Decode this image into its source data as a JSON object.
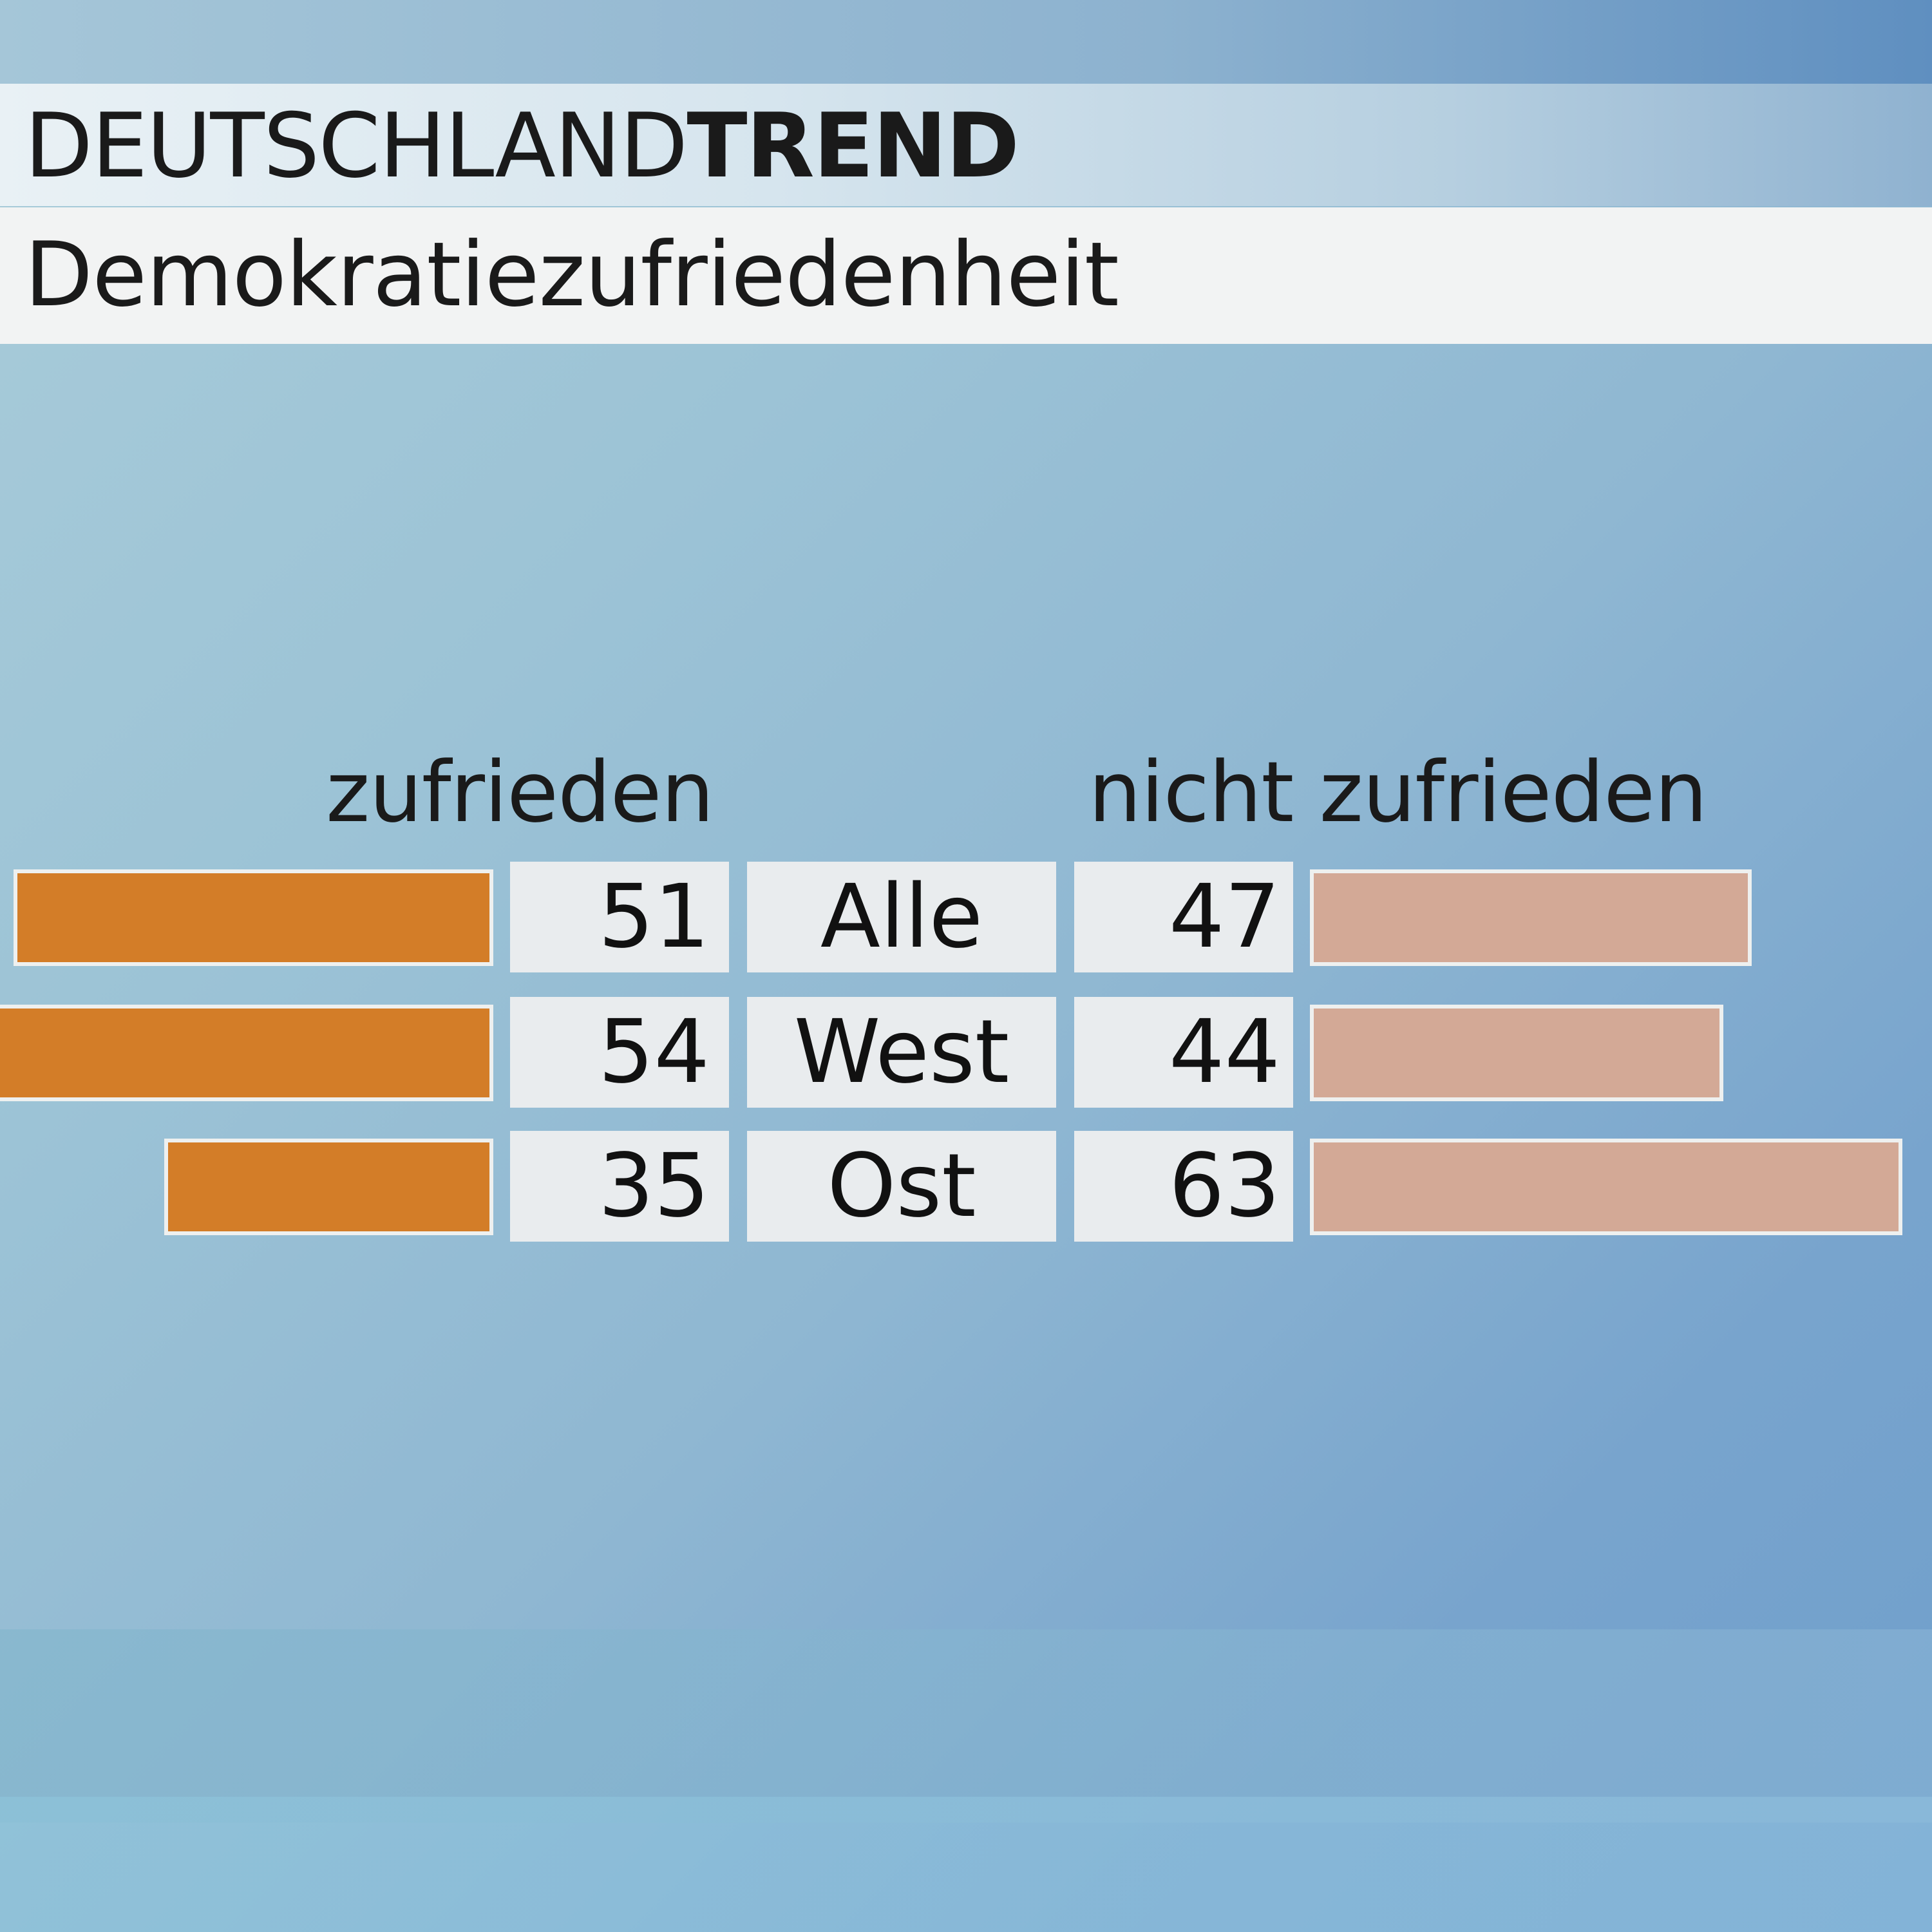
{
  "brand": {
    "light": "DEUTSCHLAND",
    "bold": "TREND"
  },
  "title": "Demokratiezufriedenheit",
  "colors": {
    "satisfied": "#d37d28",
    "unsatisfied": "#d3a996"
  },
  "chart_data": {
    "type": "bar",
    "title": "Demokratiezufriedenheit",
    "categories": [
      "Alle",
      "West",
      "Ost"
    ],
    "series": [
      {
        "name": "zufrieden",
        "values": [
          51,
          54,
          35
        ]
      },
      {
        "name": "nicht zufrieden",
        "values": [
          47,
          44,
          63
        ]
      }
    ],
    "ylim": [
      0,
      100
    ],
    "grid": false
  }
}
